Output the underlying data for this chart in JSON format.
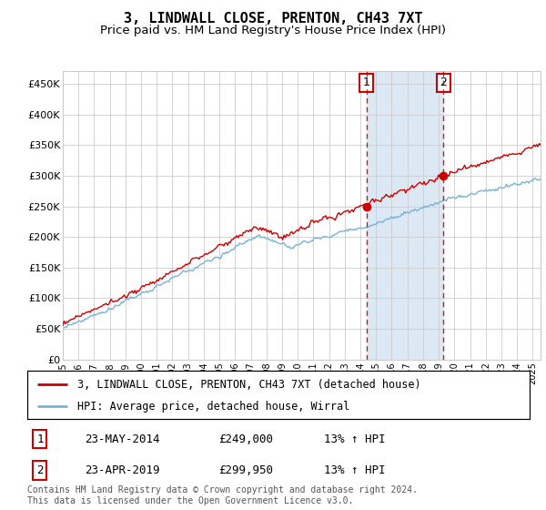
{
  "title": "3, LINDWALL CLOSE, PRENTON, CH43 7XT",
  "subtitle": "Price paid vs. HM Land Registry's House Price Index (HPI)",
  "ylabel_ticks": [
    "£0",
    "£50K",
    "£100K",
    "£150K",
    "£200K",
    "£250K",
    "£300K",
    "£350K",
    "£400K",
    "£450K"
  ],
  "ytick_values": [
    0,
    50000,
    100000,
    150000,
    200000,
    250000,
    300000,
    350000,
    400000,
    450000
  ],
  "ylim": [
    0,
    470000
  ],
  "xlim_start": 1995.0,
  "xlim_end": 2025.5,
  "vline1_x": 2014.39,
  "vline2_x": 2019.31,
  "dot1_x": 2014.39,
  "dot1_y": 249000,
  "dot2_x": 2019.31,
  "dot2_y": 299950,
  "shade_color": "#dce9f5",
  "red_color": "#cc0000",
  "blue_color": "#7ab3d4",
  "legend_label1": "3, LINDWALL CLOSE, PRENTON, CH43 7XT (detached house)",
  "legend_label2": "HPI: Average price, detached house, Wirral",
  "annotation1_label": "1",
  "annotation2_label": "2",
  "table_row1": [
    "1",
    "23-MAY-2014",
    "£249,000",
    "13% ↑ HPI"
  ],
  "table_row2": [
    "2",
    "23-APR-2019",
    "£299,950",
    "13% ↑ HPI"
  ],
  "footer": "Contains HM Land Registry data © Crown copyright and database right 2024.\nThis data is licensed under the Open Government Licence v3.0.",
  "title_fontsize": 11,
  "subtitle_fontsize": 9.5,
  "tick_fontsize": 8,
  "legend_fontsize": 8.5,
  "table_fontsize": 9,
  "footer_fontsize": 7
}
